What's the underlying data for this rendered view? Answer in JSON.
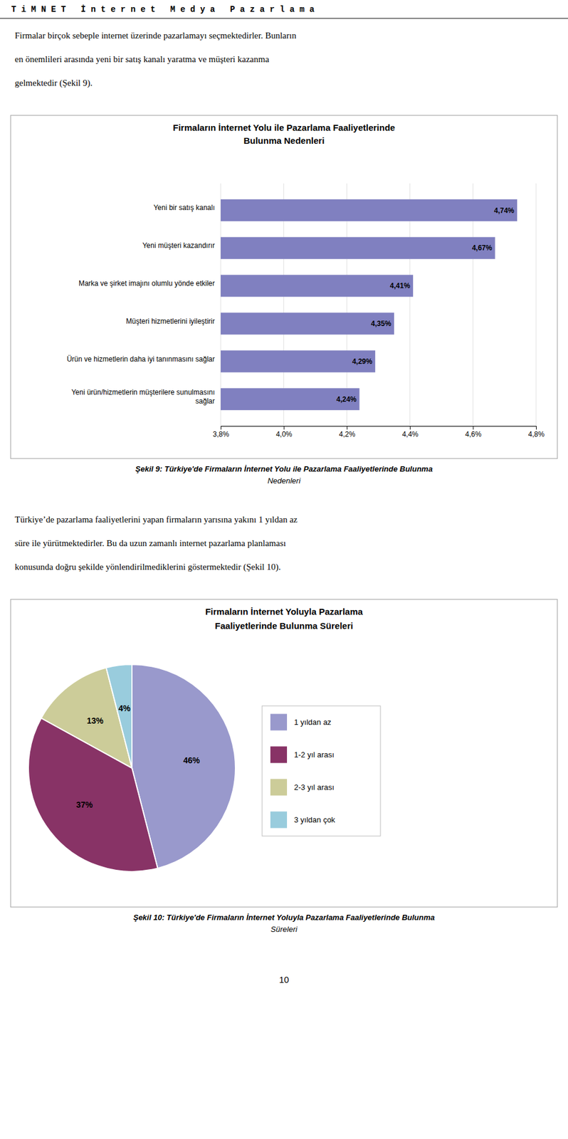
{
  "header": "T i M N E T   İ n t e r n e t   M e d y a   P a z a r l a m a",
  "paragraphs": [
    [
      "Firmalar birçok sebeple internet üzerinde pazarlamayı seçmektedirler. Bunların",
      "en önemlileri arasında yeni bir satış kanalı yaratma ve müşteri kazanma",
      "gelmektedir (Şekil 9)."
    ],
    [
      "Türkiye’de pazarlama faaliyetlerini yapan firmaların yarısına yakını 1 yıldan az",
      "süre ile yürütmektedirler. Bu da uzun zamanlı internet pazarlama planlaması",
      "konusunda doğru şekilde yönlendirilmediklerini göstermektedir (Şekil 10)."
    ]
  ],
  "chart_data": [
    {
      "type": "bar",
      "orientation": "horizontal",
      "title": "Firmaların İnternet Yolu ile Pazarlama Faaliyetlerinde\nBulunma Nedenleri",
      "categories": [
        "Yeni bir satış kanalı",
        "Yeni müşteri kazandırır",
        "Marka ve şirket imajını olumlu yönde etkiler",
        "Müşteri hizmetlerini iyileştirir",
        "Ürün ve hizmetlerin daha iyi tanınmasını sağlar",
        "Yeni ürün/hizmetlerin müşterilere sunulmasını\nsağlar"
      ],
      "values": [
        4.74,
        4.67,
        4.41,
        4.35,
        4.29,
        4.24
      ],
      "value_labels": [
        "4,74%",
        "4,67%",
        "4,41%",
        "4,35%",
        "4,29%",
        "4,24%"
      ],
      "data_labels": true,
      "color": "#8080c0",
      "xlim": [
        3.8,
        4.8
      ],
      "xticks": [
        {
          "value": 3.8,
          "label": "3,8%"
        },
        {
          "value": 4.0,
          "label": "4,0%"
        },
        {
          "value": 4.2,
          "label": "4,2%"
        },
        {
          "value": 4.4,
          "label": "4,4%"
        },
        {
          "value": 4.6,
          "label": "4,6%"
        },
        {
          "value": 4.8,
          "label": "4,8%"
        }
      ],
      "grid": true,
      "caption": "Şekil 9: Türkiye'de Firmaların İnternet Yolu ile Pazarlama Faaliyetlerinde Bulunma\nNedenleri"
    },
    {
      "type": "pie",
      "title": "Firmaların İnternet Yoluyla Pazarlama\nFaaliyetlerinde Bulunma Süreleri",
      "categories": [
        "1 yıldan az",
        "1-2 yıl arası",
        "2-3 yıl arası",
        "3 yıldan çok"
      ],
      "values": [
        46,
        37,
        13,
        4
      ],
      "value_labels": [
        "46%",
        "37%",
        "13%",
        "4%"
      ],
      "data_labels": true,
      "colors": [
        "#9999cc",
        "#883366",
        "#cccc99",
        "#99ccdd"
      ],
      "legend": "right",
      "caption": "Şekil 10: Türkiye'de Firmaların İnternet Yoluyla Pazarlama Faaliyetlerinde Bulunma\nSüreleri"
    }
  ],
  "page_number": "10"
}
